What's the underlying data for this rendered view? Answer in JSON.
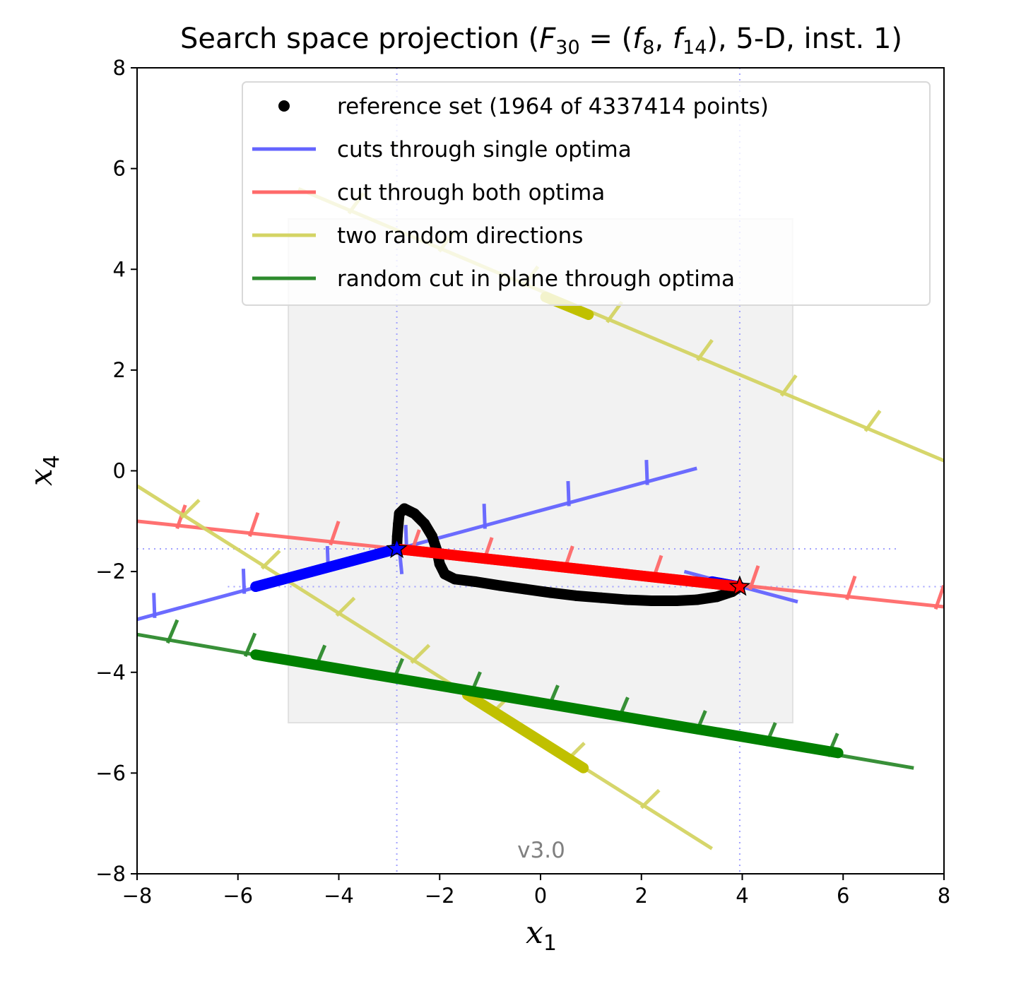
{
  "chart_data": {
    "type": "line",
    "title": {
      "prefix": "Search space projection (",
      "F": "F",
      "F_sub": "30",
      "eq": " = (",
      "f1": "f",
      "f1_sub": "8",
      "sep": ", ",
      "f2": "f",
      "f2_sub": "14",
      "suffix": "), 5-D, inst. 1)"
    },
    "xlabel": {
      "var": "x",
      "sub": "1"
    },
    "ylabel": {
      "var": "x",
      "sub": "4"
    },
    "xlim": [
      -8,
      8
    ],
    "ylim": [
      -8,
      8
    ],
    "xticks": [
      -8,
      -6,
      -4,
      -2,
      0,
      2,
      4,
      6,
      8
    ],
    "yticks": [
      -8,
      -6,
      -4,
      -2,
      0,
      2,
      4,
      6,
      8
    ],
    "xtick_labels": [
      "−8",
      "−6",
      "−4",
      "−2",
      "0",
      "2",
      "4",
      "6",
      "8"
    ],
    "ytick_labels": [
      "−8",
      "−6",
      "−4",
      "−2",
      "0",
      "2",
      "4",
      "6",
      "8"
    ],
    "region_box": {
      "x": [
        -5,
        5
      ],
      "y": [
        -5,
        5
      ],
      "color": "#f2f2f2"
    },
    "optima": [
      {
        "x": -2.85,
        "y": -1.55,
        "color": "#0000ff"
      },
      {
        "x": 3.95,
        "y": -2.3,
        "color": "#ff0000"
      }
    ],
    "legend": {
      "position": "upper-right",
      "entries": [
        {
          "label": "reference set (1964 of 4337414 points)",
          "marker": "dot",
          "color": "#000000"
        },
        {
          "label": "cuts through single optima",
          "marker": "line",
          "color": "#6464ff"
        },
        {
          "label": "cut through both optima",
          "marker": "line",
          "color": "#ff6a6a"
        },
        {
          "label": "two random directions",
          "marker": "line",
          "color": "#d4d464"
        },
        {
          "label": "random cut in plane through optima",
          "marker": "line",
          "color": "#2e8b2e"
        }
      ]
    },
    "series": [
      {
        "name": "cuts through single optima",
        "color": "#6464ff",
        "lines": [
          {
            "from": [
              -8,
              -2.95
            ],
            "to": [
              3.1,
              0.05
            ]
          },
          {
            "from": [
              2.85,
              -2.0
            ],
            "to": [
              5.1,
              -2.6
            ]
          },
          {
            "from": [
              -2.85,
              -1.05
            ],
            "to": [
              -2.75,
              -2.05
            ]
          }
        ],
        "ticks_on": 0,
        "tick_ts": [
          0.03,
          0.19,
          0.34,
          0.48,
          0.62,
          0.77,
          0.91
        ],
        "thick_segments": [
          {
            "from": [
              -5.65,
              -2.3
            ],
            "to": [
              -2.85,
              -1.55
            ]
          },
          {
            "from": [
              3.4,
              -2.2
            ],
            "to": [
              3.95,
              -2.3
            ]
          }
        ]
      },
      {
        "name": "cut through both optima",
        "color": "#ff6a6a",
        "lines": [
          {
            "from": [
              -8,
              -1.0
            ],
            "to": [
              8,
              -2.7
            ]
          }
        ],
        "ticks_on": 0,
        "tick_ts": [
          0.05,
          0.14,
          0.24,
          0.34,
          0.43,
          0.53,
          0.64,
          0.76,
          0.88,
          0.99
        ],
        "thick_segments": [
          {
            "from": [
              -2.85,
              -1.55
            ],
            "to": [
              3.95,
              -2.3
            ],
            "color": "#ff0000"
          }
        ]
      },
      {
        "name": "two random directions",
        "color": "#d4d464",
        "lines": [
          {
            "from": [
              -4.8,
              5.6
            ],
            "to": [
              8,
              0.2
            ]
          },
          {
            "from": [
              -8,
              -0.3
            ],
            "to": [
              3.4,
              -7.5
            ]
          }
        ],
        "ticks_on": "both",
        "tick_ts": [
          0.08,
          0.22,
          0.35,
          0.48,
          0.62,
          0.75,
          0.88
        ],
        "thick_segments": [
          {
            "from": [
              0.1,
              3.45
            ],
            "to": [
              0.95,
              3.1
            ],
            "color": "#c0c000"
          },
          {
            "from": [
              -1.45,
              -4.45
            ],
            "to": [
              0.85,
              -5.9
            ],
            "color": "#c0c000"
          }
        ]
      },
      {
        "name": "random cut in plane through optima",
        "color": "#2e8b2e",
        "lines": [
          {
            "from": [
              -8,
              -3.25
            ],
            "to": [
              7.4,
              -5.9
            ]
          }
        ],
        "ticks_on": 0,
        "tick_ts": [
          0.04,
          0.14,
          0.23,
          0.33,
          0.43,
          0.53,
          0.62,
          0.72,
          0.81,
          0.89
        ],
        "thick_segments": [
          {
            "from": [
              -5.65,
              -3.65
            ],
            "to": [
              5.9,
              -5.6
            ],
            "color": "#008000"
          }
        ]
      }
    ],
    "reference_set": {
      "name": "reference set (1964 of 4337414 points)",
      "color": "#000000",
      "points": [
        [
          -2.85,
          -1.55
        ],
        [
          -2.84,
          -1.3
        ],
        [
          -2.82,
          -1.05
        ],
        [
          -2.8,
          -0.85
        ],
        [
          -2.7,
          -0.75
        ],
        [
          -2.5,
          -0.85
        ],
        [
          -2.3,
          -1.05
        ],
        [
          -2.15,
          -1.3
        ],
        [
          -2.05,
          -1.6
        ],
        [
          -2.0,
          -1.85
        ],
        [
          -1.9,
          -2.05
        ],
        [
          -1.7,
          -2.15
        ],
        [
          -1.3,
          -2.2
        ],
        [
          -0.8,
          -2.28
        ],
        [
          -0.3,
          -2.35
        ],
        [
          0.2,
          -2.42
        ],
        [
          0.7,
          -2.48
        ],
        [
          1.2,
          -2.52
        ],
        [
          1.7,
          -2.56
        ],
        [
          2.2,
          -2.58
        ],
        [
          2.7,
          -2.58
        ],
        [
          3.1,
          -2.56
        ],
        [
          3.5,
          -2.5
        ],
        [
          3.8,
          -2.4
        ],
        [
          3.95,
          -2.3
        ]
      ]
    },
    "guide_lines": {
      "color": "#9999ff",
      "vertical": [
        -2.85,
        3.95
      ],
      "horizontal": [
        {
          "y": -1.55,
          "x": [
            -8,
            7.1
          ]
        },
        {
          "y": -2.3,
          "x": [
            -6.2,
            8
          ]
        }
      ]
    },
    "version": "v3.0",
    "grid": false
  }
}
